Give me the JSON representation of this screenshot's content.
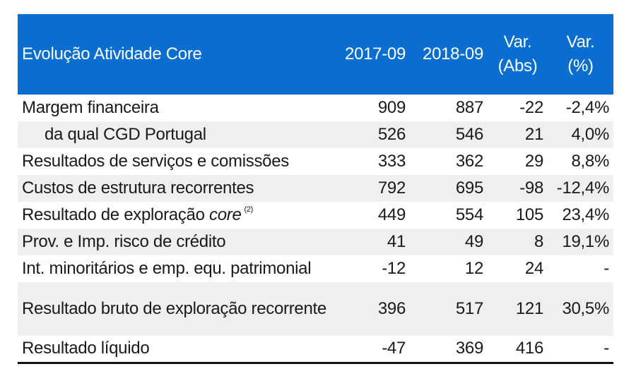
{
  "table": {
    "header": {
      "label": "Evolução Atividade Core",
      "col_2017": "2017-09",
      "col_2018": "2018-09",
      "var_abs_line1": "Var.",
      "var_abs_line2": "(Abs)",
      "var_pct_line1": "Var.",
      "var_pct_line2": "(%)"
    },
    "rows": [
      {
        "label": "Margem financeira",
        "y2017": "909",
        "y2018": "887",
        "abs": "-22",
        "pct": "-2,4%"
      },
      {
        "label": "da qual CGD Portugal",
        "y2017": "526",
        "y2018": "546",
        "abs": "21",
        "pct": "4,0%"
      },
      {
        "label": "Resultados de serviços e comissões",
        "y2017": "333",
        "y2018": "362",
        "abs": "29",
        "pct": "8,8%"
      },
      {
        "label": "Custos de estrutura recorrentes",
        "y2017": "792",
        "y2018": "695",
        "abs": "-98",
        "pct": "-12,4%"
      },
      {
        "label": "Resultado de exploração",
        "label_italic": "core",
        "label_note": "(2)",
        "y2017": "449",
        "y2018": "554",
        "abs": "105",
        "pct": "23,4%"
      },
      {
        "label": "Prov. e Imp. risco de crédito",
        "y2017": "41",
        "y2018": "49",
        "abs": "8",
        "pct": "19,1%"
      },
      {
        "label": "Int. minoritários e emp. equ. patrimonial",
        "y2017": "-12",
        "y2018": "12",
        "abs": "24",
        "pct": "-"
      },
      {
        "label": "Resultado bruto de exploração recorrente",
        "y2017": "396",
        "y2018": "517",
        "abs": "121",
        "pct": "30,5%"
      },
      {
        "label": "Resultado líquido",
        "y2017": "-47",
        "y2018": "369",
        "abs": "416",
        "pct": "-"
      }
    ]
  },
  "colors": {
    "header_bg": "#0a6ed1",
    "header_text": "#ffffff",
    "alt_row_bg": "#efefef"
  }
}
